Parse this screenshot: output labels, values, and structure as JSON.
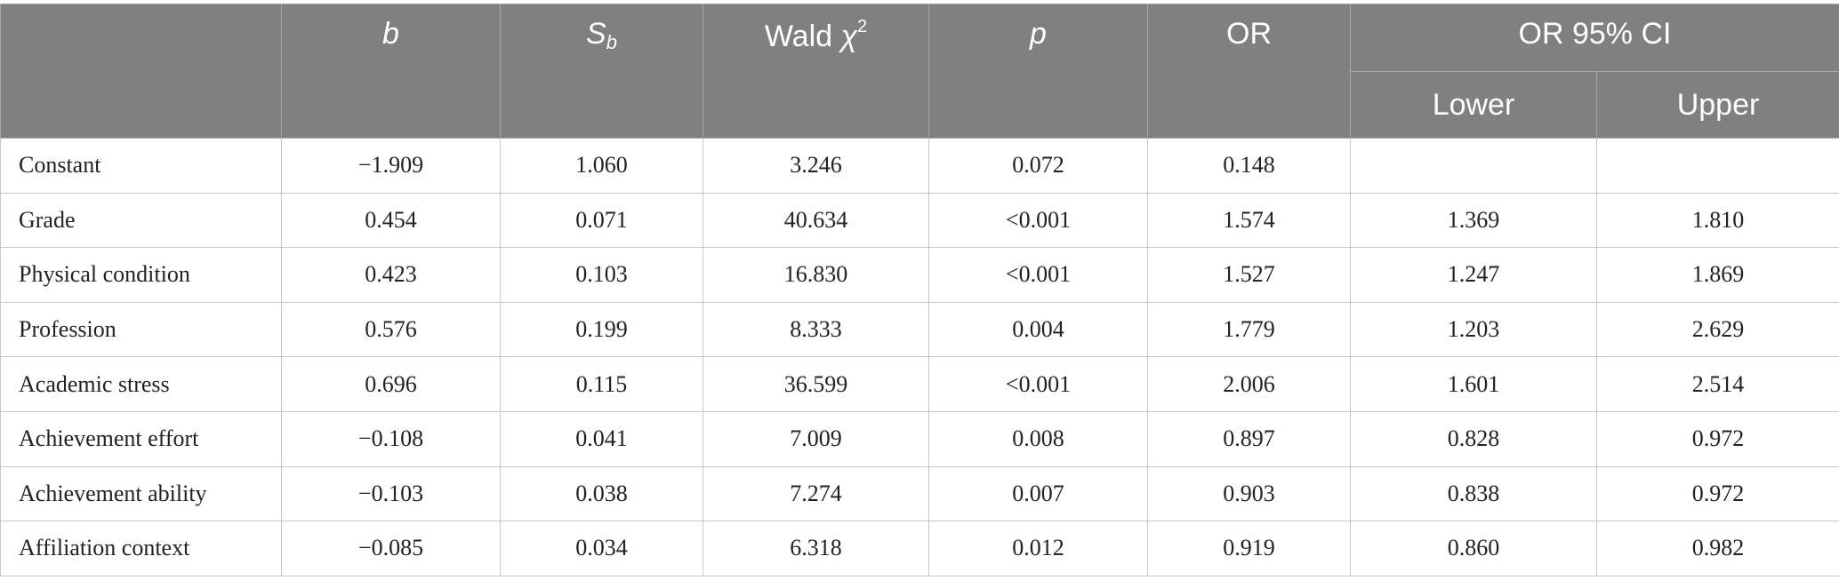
{
  "header": {
    "row_label": "",
    "b": "b",
    "sb_main": "S",
    "sb_sub": "b",
    "wald_text": "Wald ",
    "wald_chi": "χ",
    "wald_sup": "2",
    "p": "p",
    "or": "OR",
    "ci_group": "OR 95% CI",
    "lower": "Lower",
    "upper": "Upper"
  },
  "rows": [
    {
      "label": "Constant",
      "b": "−1.909",
      "sb": "1.060",
      "wald": "3.246",
      "p": "0.072",
      "or": "0.148",
      "lower": "",
      "upper": ""
    },
    {
      "label": "Grade",
      "b": "0.454",
      "sb": "0.071",
      "wald": "40.634",
      "p": "<0.001",
      "or": "1.574",
      "lower": "1.369",
      "upper": "1.810"
    },
    {
      "label": "Physical condition",
      "b": "0.423",
      "sb": "0.103",
      "wald": "16.830",
      "p": "<0.001",
      "or": "1.527",
      "lower": "1.247",
      "upper": "1.869"
    },
    {
      "label": "Profession",
      "b": "0.576",
      "sb": "0.199",
      "wald": "8.333",
      "p": "0.004",
      "or": "1.779",
      "lower": "1.203",
      "upper": "2.629"
    },
    {
      "label": "Academic stress",
      "b": "0.696",
      "sb": "0.115",
      "wald": "36.599",
      "p": "<0.001",
      "or": "2.006",
      "lower": "1.601",
      "upper": "2.514"
    },
    {
      "label": "Achievement effort",
      "b": "−0.108",
      "sb": "0.041",
      "wald": "7.009",
      "p": "0.008",
      "or": "0.897",
      "lower": "0.828",
      "upper": "0.972"
    },
    {
      "label": "Achievement ability",
      "b": "−0.103",
      "sb": "0.038",
      "wald": "7.274",
      "p": "0.007",
      "or": "0.903",
      "lower": "0.838",
      "upper": "0.972"
    },
    {
      "label": "Affiliation context",
      "b": "−0.085",
      "sb": "0.034",
      "wald": "6.318",
      "p": "0.012",
      "or": "0.919",
      "lower": "0.860",
      "upper": "0.982"
    }
  ],
  "colors": {
    "header_bg": "#7f807f",
    "header_text": "#ffffff",
    "grid": "#c8c8c8"
  }
}
